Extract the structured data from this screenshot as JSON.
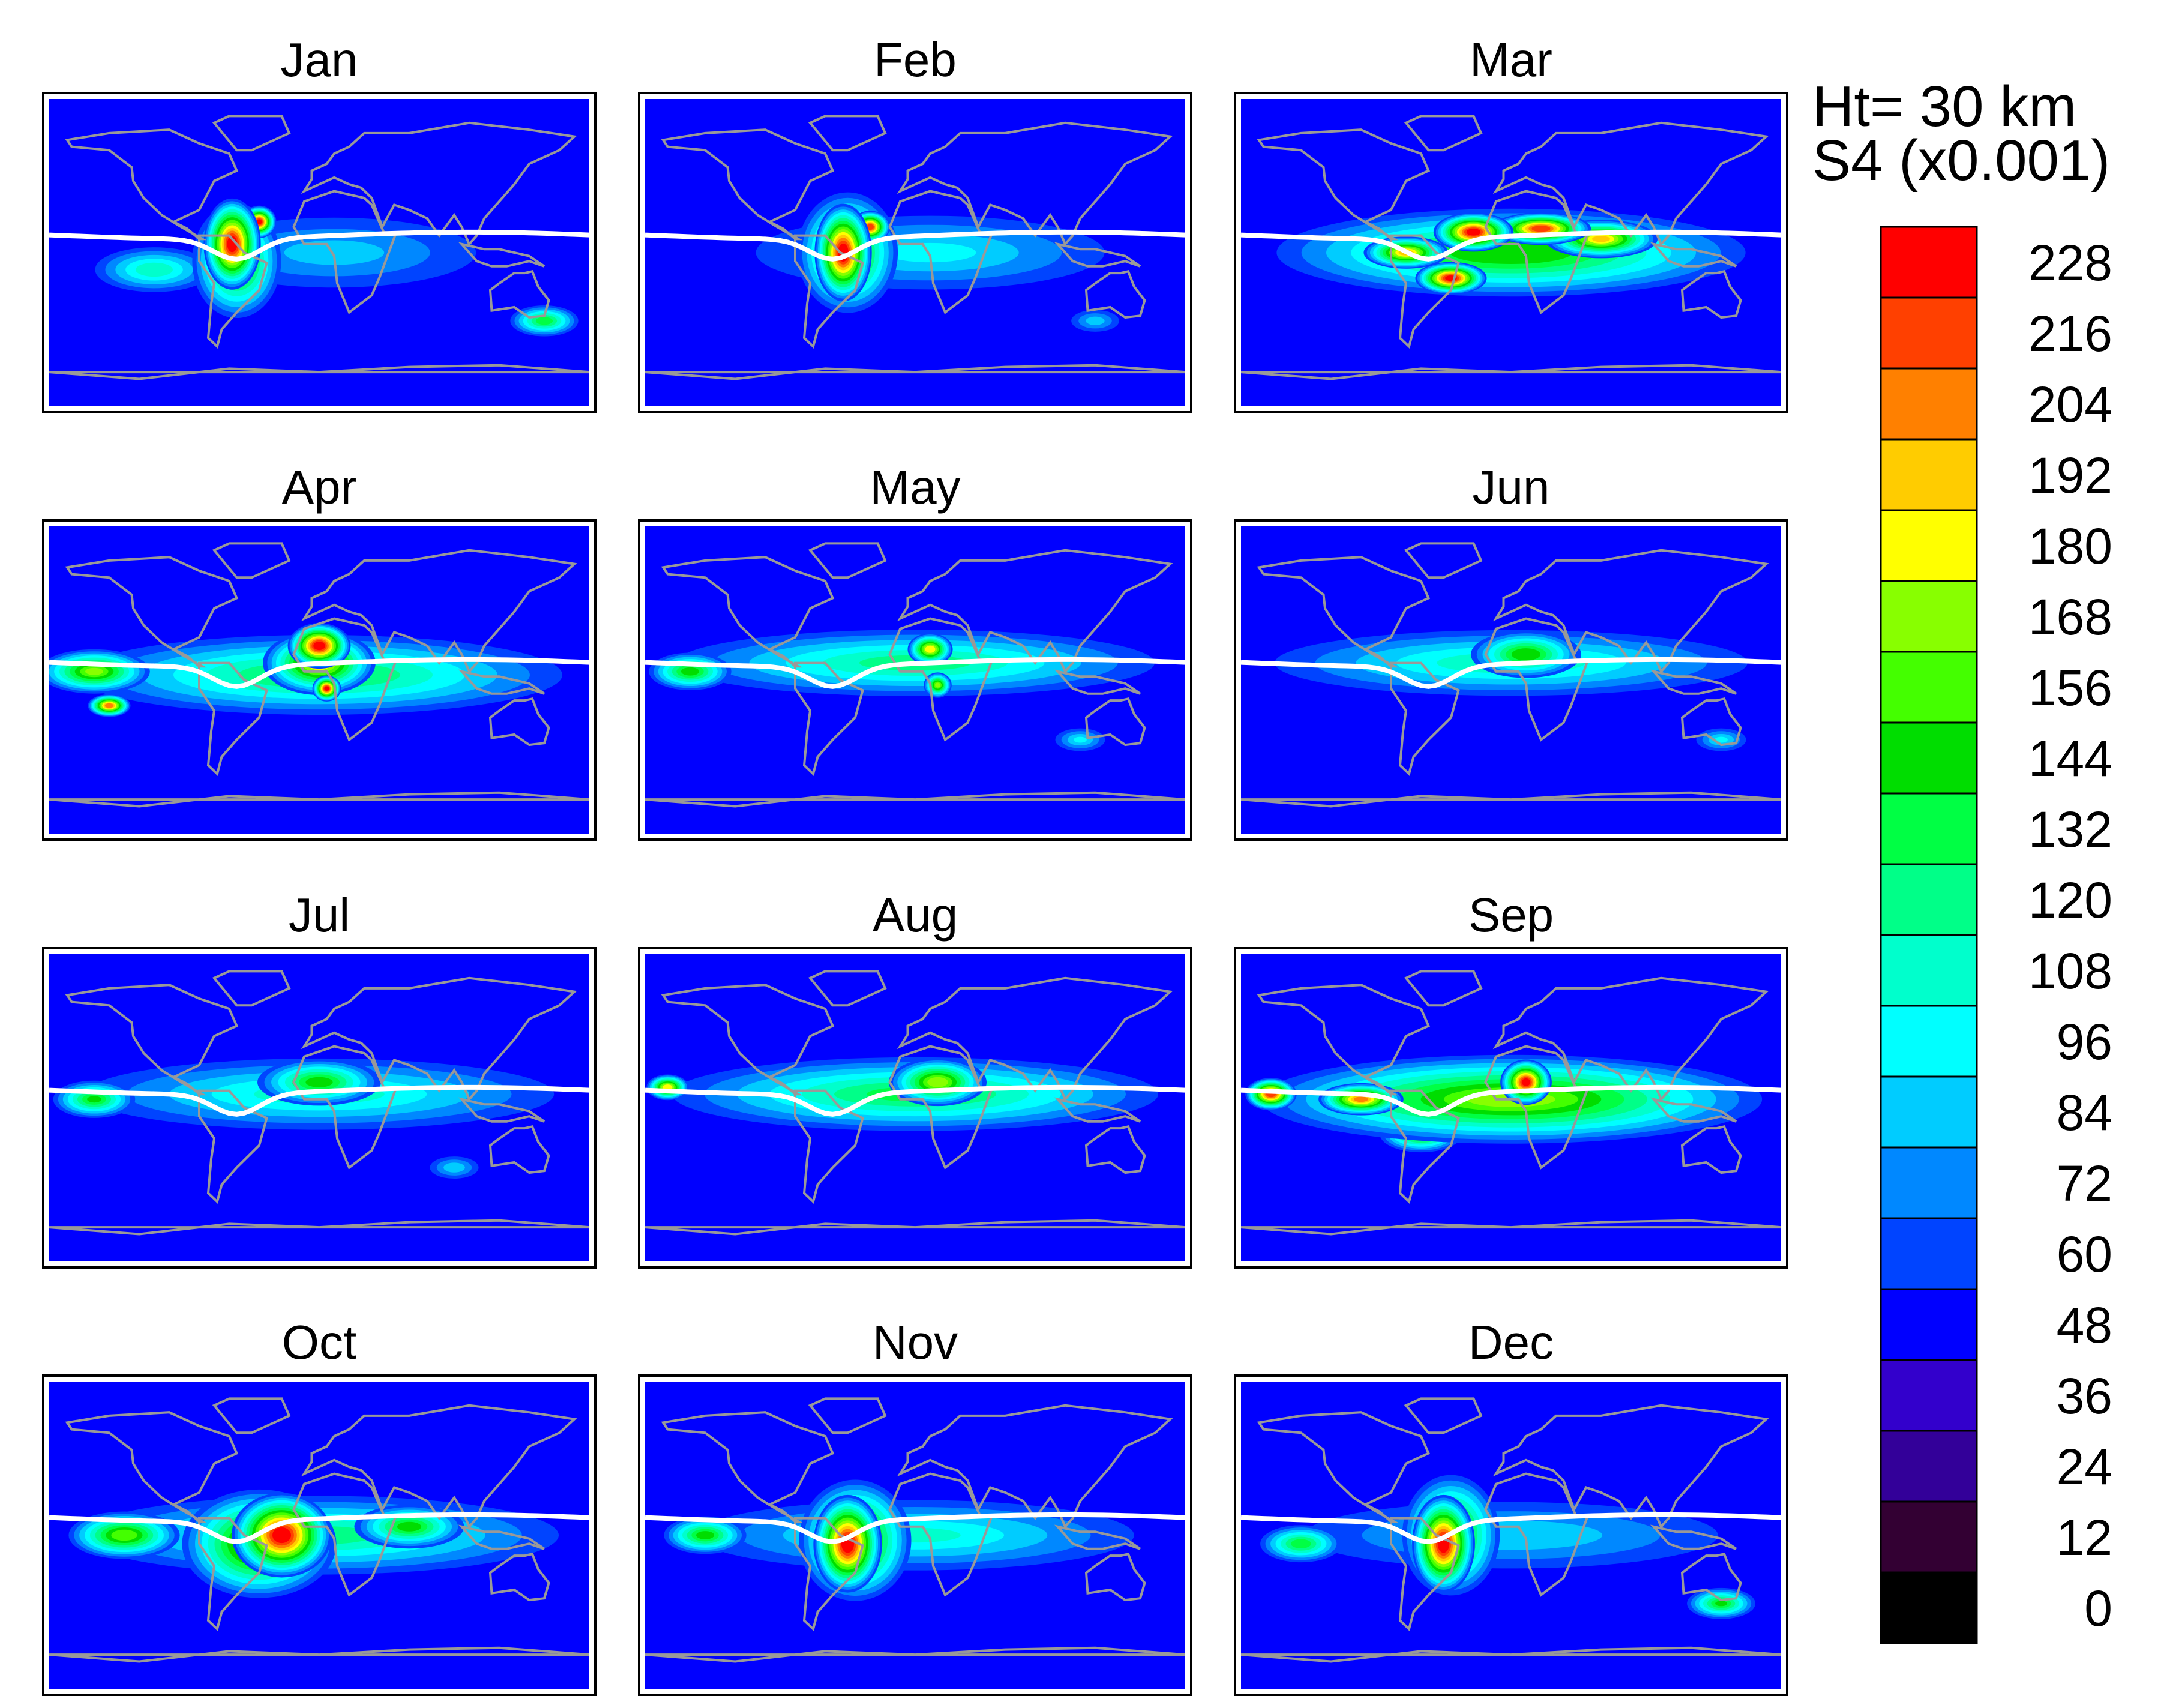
{
  "chart_data": {
    "type": "heatmap",
    "header": {
      "line1": "Ht= 30 km",
      "line2": "S4 (x0.001)"
    },
    "panels": [
      {
        "title": "Jan",
        "blobs": [
          {
            "lon": -58,
            "lat": 5,
            "rx": 20,
            "ry": 28,
            "value": 232
          },
          {
            "lon": -40,
            "lat": 18,
            "rx": 12,
            "ry": 10,
            "value": 228
          },
          {
            "lon": -55,
            "lat": -5,
            "rx": 32,
            "ry": 36,
            "value": 165
          },
          {
            "lon": -110,
            "lat": -10,
            "rx": 45,
            "ry": 15,
            "value": 118
          },
          {
            "lon": 150,
            "lat": -40,
            "rx": 25,
            "ry": 10,
            "value": 140
          },
          {
            "lon": 10,
            "lat": 0,
            "rx": 120,
            "ry": 26,
            "value": 90
          }
        ]
      },
      {
        "title": "Feb",
        "blobs": [
          {
            "lon": -48,
            "lat": 0,
            "rx": 20,
            "ry": 30,
            "value": 234
          },
          {
            "lon": -30,
            "lat": 15,
            "rx": 14,
            "ry": 10,
            "value": 220
          },
          {
            "lon": -45,
            "lat": 0,
            "rx": 36,
            "ry": 38,
            "value": 170
          },
          {
            "lon": 10,
            "lat": 0,
            "rx": 140,
            "ry": 26,
            "value": 100
          },
          {
            "lon": 120,
            "lat": -40,
            "rx": 20,
            "ry": 8,
            "value": 92
          }
        ]
      },
      {
        "title": "Mar",
        "blobs": [
          {
            "lon": -25,
            "lat": 12,
            "rx": 28,
            "ry": 12,
            "value": 232
          },
          {
            "lon": -40,
            "lat": -15,
            "rx": 25,
            "ry": 10,
            "value": 230
          },
          {
            "lon": 20,
            "lat": 14,
            "rx": 35,
            "ry": 10,
            "value": 222
          },
          {
            "lon": -70,
            "lat": 0,
            "rx": 30,
            "ry": 10,
            "value": 195
          },
          {
            "lon": 60,
            "lat": 8,
            "rx": 40,
            "ry": 12,
            "value": 192
          },
          {
            "lon": 0,
            "lat": 0,
            "rx": 170,
            "ry": 28,
            "value": 155
          },
          {
            "lon": 20,
            "lat": -25,
            "rx": 30,
            "ry": 6,
            "value": 30
          }
        ]
      },
      {
        "title": "Apr",
        "blobs": [
          {
            "lon": 0,
            "lat": 20,
            "rx": 22,
            "ry": 14,
            "value": 234
          },
          {
            "lon": 5,
            "lat": -5,
            "rx": 10,
            "ry": 8,
            "value": 230
          },
          {
            "lon": -140,
            "lat": -15,
            "rx": 15,
            "ry": 7,
            "value": 212
          },
          {
            "lon": 0,
            "lat": 10,
            "rx": 40,
            "ry": 20,
            "value": 190
          },
          {
            "lon": -150,
            "lat": 5,
            "rx": 40,
            "ry": 14,
            "value": 168
          },
          {
            "lon": 0,
            "lat": 3,
            "rx": 180,
            "ry": 26,
            "value": 135
          }
        ]
      },
      {
        "title": "May",
        "blobs": [
          {
            "lon": 10,
            "lat": 18,
            "rx": 16,
            "ry": 10,
            "value": 190
          },
          {
            "lon": 15,
            "lat": -3,
            "rx": 10,
            "ry": 8,
            "value": 172
          },
          {
            "lon": 0,
            "lat": 10,
            "rx": 180,
            "ry": 22,
            "value": 125
          },
          {
            "lon": -150,
            "lat": 5,
            "rx": 30,
            "ry": 12,
            "value": 150
          },
          {
            "lon": 110,
            "lat": -35,
            "rx": 20,
            "ry": 8,
            "value": 100
          }
        ]
      },
      {
        "title": "Jun",
        "blobs": [
          {
            "lon": 10,
            "lat": 15,
            "rx": 40,
            "ry": 15,
            "value": 155
          },
          {
            "lon": 0,
            "lat": 10,
            "rx": 180,
            "ry": 22,
            "value": 118
          },
          {
            "lon": 140,
            "lat": -35,
            "rx": 20,
            "ry": 8,
            "value": 100
          }
        ]
      },
      {
        "title": "Jul",
        "blobs": [
          {
            "lon": 0,
            "lat": 15,
            "rx": 45,
            "ry": 15,
            "value": 150
          },
          {
            "lon": -150,
            "lat": 5,
            "rx": 30,
            "ry": 12,
            "value": 145
          },
          {
            "lon": 0,
            "lat": 8,
            "rx": 180,
            "ry": 24,
            "value": 115
          },
          {
            "lon": 90,
            "lat": -35,
            "rx": 20,
            "ry": 8,
            "value": 95
          }
        ]
      },
      {
        "title": "Aug",
        "blobs": [
          {
            "lon": 15,
            "lat": 15,
            "rx": 35,
            "ry": 15,
            "value": 175
          },
          {
            "lon": -165,
            "lat": 12,
            "rx": 15,
            "ry": 8,
            "value": 190
          },
          {
            "lon": 0,
            "lat": 8,
            "rx": 180,
            "ry": 24,
            "value": 135
          }
        ]
      },
      {
        "title": "Sep",
        "blobs": [
          {
            "lon": 10,
            "lat": 15,
            "rx": 18,
            "ry": 14,
            "value": 230
          },
          {
            "lon": -160,
            "lat": 8,
            "rx": 18,
            "ry": 10,
            "value": 222
          },
          {
            "lon": -100,
            "lat": 5,
            "rx": 30,
            "ry": 10,
            "value": 205
          },
          {
            "lon": 0,
            "lat": 5,
            "rx": 180,
            "ry": 28,
            "value": 170
          },
          {
            "lon": -60,
            "lat": -15,
            "rx": 30,
            "ry": 12,
            "value": 160
          }
        ]
      },
      {
        "title": "Oct",
        "blobs": [
          {
            "lon": -25,
            "lat": 0,
            "rx": 35,
            "ry": 26,
            "value": 234
          },
          {
            "lon": -40,
            "lat": -5,
            "rx": 55,
            "ry": 34,
            "value": 180
          },
          {
            "lon": -130,
            "lat": 0,
            "rx": 40,
            "ry": 15,
            "value": 165
          },
          {
            "lon": 60,
            "lat": 5,
            "rx": 40,
            "ry": 14,
            "value": 150
          },
          {
            "lon": 0,
            "lat": 0,
            "rx": 180,
            "ry": 26,
            "value": 125
          }
        ]
      },
      {
        "title": "Nov",
        "blobs": [
          {
            "lon": -45,
            "lat": -5,
            "rx": 24,
            "ry": 30,
            "value": 234
          },
          {
            "lon": -40,
            "lat": -3,
            "rx": 40,
            "ry": 38,
            "value": 180
          },
          {
            "lon": -140,
            "lat": 0,
            "rx": 30,
            "ry": 12,
            "value": 150
          },
          {
            "lon": 0,
            "lat": 0,
            "rx": 170,
            "ry": 24,
            "value": 110
          }
        ]
      },
      {
        "title": "Dec",
        "blobs": [
          {
            "lon": -45,
            "lat": -5,
            "rx": 22,
            "ry": 30,
            "value": 234
          },
          {
            "lon": -40,
            "lat": 0,
            "rx": 35,
            "ry": 38,
            "value": 170
          },
          {
            "lon": -140,
            "lat": -5,
            "rx": 30,
            "ry": 12,
            "value": 140
          },
          {
            "lon": 140,
            "lat": -40,
            "rx": 25,
            "ry": 10,
            "value": 145
          },
          {
            "lon": 0,
            "lat": 0,
            "rx": 170,
            "ry": 24,
            "value": 95
          }
        ]
      }
    ],
    "background_value": 50,
    "x_range": [
      -180,
      180
    ],
    "y_range": [
      -90,
      90
    ],
    "equator_line_color": "#ffffff",
    "coastline_color": "#999999",
    "colorbar": {
      "levels": [
        228,
        216,
        204,
        192,
        180,
        168,
        156,
        144,
        132,
        120,
        108,
        96,
        84,
        72,
        60,
        48,
        36,
        24,
        12,
        0
      ],
      "colors": [
        "#ff0000",
        "#ff4000",
        "#ff8000",
        "#ffcc00",
        "#ffff00",
        "#88ff00",
        "#44ff00",
        "#00dd00",
        "#00ff44",
        "#00ff88",
        "#00ffcc",
        "#00ffff",
        "#00ccff",
        "#0088ff",
        "#0044ff",
        "#0000ff",
        "#3300cc",
        "#330099",
        "#330033",
        "#000000"
      ]
    }
  }
}
